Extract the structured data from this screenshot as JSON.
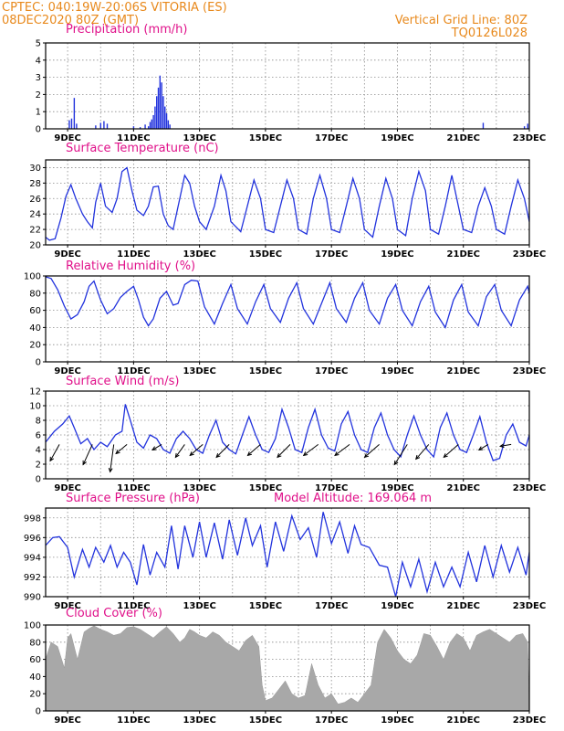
{
  "header": {
    "left_line1": "CPTEC:    040:19W-20:06S  VITORIA (ES)",
    "left_line2": "08DEC2020 80Z (GMT)",
    "right_line1": "Vertical Grid Line: 80Z",
    "right_line2": "TQ0126L028"
  },
  "colors": {
    "line": "#2233dd",
    "cloud": "#a8a8a8",
    "title": "#e0118a",
    "header": "#e8891c"
  },
  "x_axis": {
    "start_day": 8,
    "start_hour": 8,
    "end_day": 23,
    "end_hour": 0,
    "tick_days": [
      9,
      11,
      13,
      15,
      17,
      19,
      21,
      23
    ],
    "tick_labels": [
      "9DEC",
      "11DEC",
      "13DEC",
      "15DEC",
      "17DEC",
      "19DEC",
      "21DEC",
      "23DEC"
    ],
    "grid_days": [
      9,
      10,
      11,
      12,
      13,
      14,
      15,
      16,
      17,
      18,
      19,
      20,
      21,
      22,
      23
    ]
  },
  "model_altitude": "Model Altitude: 169.064 m",
  "chart_data": [
    {
      "id": "precip",
      "type": "bar",
      "title": "Precipitation (mm/h)",
      "ylim": [
        0,
        5
      ],
      "yticks": [
        0,
        1,
        2,
        3,
        4,
        5
      ],
      "points": [
        [
          9.05,
          0.5
        ],
        [
          9.12,
          0.6
        ],
        [
          9.2,
          1.8
        ],
        [
          9.27,
          0.3
        ],
        [
          9.85,
          0.2
        ],
        [
          10.0,
          0.35
        ],
        [
          10.1,
          0.45
        ],
        [
          10.2,
          0.3
        ],
        [
          11.0,
          0.15
        ],
        [
          11.2,
          0.1
        ],
        [
          11.35,
          0.25
        ],
        [
          11.45,
          0.15
        ],
        [
          11.5,
          0.4
        ],
        [
          11.55,
          0.55
        ],
        [
          11.6,
          0.8
        ],
        [
          11.65,
          1.3
        ],
        [
          11.7,
          1.9
        ],
        [
          11.75,
          2.4
        ],
        [
          11.8,
          3.1
        ],
        [
          11.85,
          2.7
        ],
        [
          11.9,
          1.9
        ],
        [
          11.95,
          1.3
        ],
        [
          12.0,
          0.9
        ],
        [
          12.05,
          0.5
        ],
        [
          12.1,
          0.25
        ],
        [
          21.6,
          0.35
        ],
        [
          22.85,
          0.15
        ],
        [
          22.95,
          0.3
        ]
      ]
    },
    {
      "id": "temp",
      "type": "line",
      "title": "Surface Temperature (nC)",
      "ylim": [
        20,
        31
      ],
      "yticks": [
        20,
        22,
        24,
        26,
        28,
        30
      ],
      "x": [
        8.33,
        8.45,
        8.62,
        8.8,
        8.95,
        9.1,
        9.25,
        9.45,
        9.6,
        9.75,
        9.85,
        10.0,
        10.15,
        10.35,
        10.5,
        10.65,
        10.8,
        10.95,
        11.1,
        11.3,
        11.45,
        11.6,
        11.75,
        11.9,
        12.05,
        12.2,
        12.4,
        12.55,
        12.7,
        12.85,
        13.0,
        13.2,
        13.45,
        13.65,
        13.8,
        13.95,
        14.25,
        14.45,
        14.65,
        14.85,
        15.0,
        15.25,
        15.45,
        15.65,
        15.85,
        16.0,
        16.25,
        16.45,
        16.65,
        16.85,
        17.0,
        17.25,
        17.45,
        17.65,
        17.85,
        18.0,
        18.25,
        18.45,
        18.65,
        18.85,
        19.0,
        19.25,
        19.45,
        19.65,
        19.85,
        20.0,
        20.25,
        20.45,
        20.65,
        20.85,
        21.0,
        21.25,
        21.45,
        21.65,
        21.85,
        22.0,
        22.25,
        22.45,
        22.65,
        22.85,
        23.0
      ],
      "y": [
        21.0,
        20.6,
        20.8,
        23.5,
        26.3,
        27.8,
        26.0,
        24.0,
        23.0,
        22.2,
        25.5,
        28.0,
        25.0,
        24.2,
        26.0,
        29.5,
        30.0,
        27.0,
        24.5,
        23.8,
        25.0,
        27.5,
        27.6,
        24.0,
        22.5,
        22.0,
        26.0,
        29.0,
        28.0,
        25.0,
        23.0,
        22.0,
        25.0,
        29.0,
        27.0,
        23.0,
        21.7,
        25.0,
        28.4,
        26.0,
        22.0,
        21.6,
        25.0,
        28.4,
        26.0,
        22.0,
        21.4,
        26.0,
        29.0,
        26.0,
        22.0,
        21.6,
        25.0,
        28.6,
        26.0,
        22.0,
        21.0,
        25.0,
        28.6,
        26.0,
        22.0,
        21.2,
        26.0,
        29.5,
        27.0,
        22.0,
        21.4,
        25.0,
        29.0,
        25.0,
        22.0,
        21.6,
        25.0,
        27.4,
        25.0,
        22.0,
        21.4,
        25.0,
        28.4,
        26.0,
        23.0
      ]
    },
    {
      "id": "rh",
      "type": "line",
      "title": "Relative Humidity (%)",
      "ylim": [
        0,
        100
      ],
      "yticks": [
        0,
        20,
        40,
        60,
        80,
        100
      ],
      "x": [
        8.33,
        8.5,
        8.7,
        8.9,
        9.1,
        9.3,
        9.5,
        9.65,
        9.8,
        10.0,
        10.2,
        10.4,
        10.6,
        10.8,
        11.0,
        11.15,
        11.3,
        11.45,
        11.6,
        11.8,
        12.0,
        12.2,
        12.35,
        12.55,
        12.75,
        12.95,
        13.15,
        13.45,
        13.7,
        13.95,
        14.15,
        14.45,
        14.7,
        14.95,
        15.15,
        15.45,
        15.7,
        15.95,
        16.15,
        16.45,
        16.7,
        16.95,
        17.15,
        17.45,
        17.7,
        17.95,
        18.15,
        18.45,
        18.7,
        18.95,
        19.15,
        19.45,
        19.7,
        19.95,
        20.15,
        20.45,
        20.7,
        20.95,
        21.15,
        21.45,
        21.7,
        21.95,
        22.15,
        22.45,
        22.7,
        22.95,
        23.0
      ],
      "y": [
        99,
        97,
        84,
        65,
        50,
        55,
        70,
        88,
        94,
        72,
        56,
        62,
        75,
        82,
        88,
        72,
        52,
        42,
        50,
        74,
        82,
        66,
        68,
        90,
        95,
        94,
        64,
        44,
        68,
        90,
        62,
        44,
        70,
        90,
        62,
        46,
        74,
        92,
        62,
        44,
        68,
        92,
        62,
        46,
        74,
        92,
        60,
        44,
        74,
        90,
        60,
        42,
        70,
        88,
        58,
        40,
        72,
        90,
        58,
        42,
        76,
        90,
        60,
        42,
        72,
        88,
        80
      ]
    },
    {
      "id": "wind",
      "type": "line",
      "title": "Surface Wind (m/s)",
      "ylim": [
        0,
        12
      ],
      "yticks": [
        0,
        2,
        4,
        6,
        8,
        10,
        12
      ],
      "x": [
        8.33,
        8.6,
        8.85,
        9.05,
        9.2,
        9.4,
        9.6,
        9.8,
        10.0,
        10.2,
        10.45,
        10.65,
        10.75,
        10.9,
        11.1,
        11.3,
        11.5,
        11.7,
        11.9,
        12.1,
        12.3,
        12.5,
        12.7,
        12.9,
        13.1,
        13.3,
        13.5,
        13.7,
        13.9,
        14.1,
        14.3,
        14.5,
        14.7,
        14.9,
        15.1,
        15.3,
        15.5,
        15.7,
        15.9,
        16.1,
        16.3,
        16.5,
        16.7,
        16.9,
        17.1,
        17.3,
        17.5,
        17.7,
        17.9,
        18.1,
        18.3,
        18.5,
        18.7,
        18.9,
        19.1,
        19.3,
        19.5,
        19.7,
        19.9,
        20.1,
        20.3,
        20.5,
        20.7,
        20.9,
        21.1,
        21.3,
        21.5,
        21.7,
        21.9,
        22.1,
        22.3,
        22.5,
        22.7,
        22.9,
        23.0
      ],
      "y": [
        5.0,
        6.5,
        7.5,
        8.6,
        7.0,
        4.8,
        5.5,
        4.0,
        5.0,
        4.4,
        6.0,
        6.5,
        10.2,
        8.0,
        5.0,
        4.2,
        6.0,
        5.5,
        4.0,
        3.5,
        5.5,
        6.5,
        5.5,
        4.0,
        3.5,
        6.0,
        8.0,
        5.0,
        4.0,
        3.4,
        6.0,
        8.5,
        6.0,
        4.0,
        3.6,
        5.5,
        9.5,
        7.0,
        4.0,
        3.6,
        7.0,
        9.5,
        6.0,
        4.2,
        3.8,
        7.5,
        9.2,
        6.0,
        4.0,
        3.6,
        7.0,
        9.0,
        6.0,
        4.0,
        3.0,
        6.0,
        8.6,
        6.0,
        4.0,
        3.0,
        7.0,
        9.0,
        6.0,
        4.0,
        3.6,
        6.0,
        8.5,
        5.0,
        2.5,
        2.8,
        6.0,
        7.5,
        5.0,
        4.5,
        6.0
      ],
      "arrows": [
        {
          "x": 8.75,
          "dx": -10,
          "dy": 18
        },
        {
          "x": 9.75,
          "dx": -10,
          "dy": 22
        },
        {
          "x": 10.4,
          "dx": -4,
          "dy": 30
        },
        {
          "x": 10.8,
          "dx": -12,
          "dy": 10
        },
        {
          "x": 11.85,
          "dx": -10,
          "dy": 6
        },
        {
          "x": 12.55,
          "dx": -10,
          "dy": 14
        },
        {
          "x": 13.1,
          "dx": -14,
          "dy": 12
        },
        {
          "x": 13.9,
          "dx": -14,
          "dy": 14
        },
        {
          "x": 14.85,
          "dx": -14,
          "dy": 12
        },
        {
          "x": 15.75,
          "dx": -14,
          "dy": 14
        },
        {
          "x": 16.6,
          "dx": -16,
          "dy": 12
        },
        {
          "x": 17.55,
          "dx": -16,
          "dy": 12
        },
        {
          "x": 18.45,
          "dx": -16,
          "dy": 14
        },
        {
          "x": 19.3,
          "dx": -14,
          "dy": 22
        },
        {
          "x": 19.95,
          "dx": -14,
          "dy": 16
        },
        {
          "x": 20.85,
          "dx": -16,
          "dy": 14
        },
        {
          "x": 21.75,
          "dx": -10,
          "dy": 6
        },
        {
          "x": 22.45,
          "dx": -12,
          "dy": 2
        }
      ]
    },
    {
      "id": "press",
      "type": "line",
      "title": "Surface Pressure (hPa)",
      "ylim": [
        990,
        999
      ],
      "yticks": [
        990,
        992,
        994,
        996,
        998
      ],
      "x": [
        8.33,
        8.55,
        8.75,
        9.0,
        9.2,
        9.45,
        9.65,
        9.85,
        10.1,
        10.3,
        10.5,
        10.7,
        10.9,
        11.1,
        11.3,
        11.5,
        11.7,
        11.95,
        12.15,
        12.35,
        12.55,
        12.8,
        13.0,
        13.2,
        13.45,
        13.7,
        13.9,
        14.15,
        14.4,
        14.6,
        14.85,
        15.05,
        15.3,
        15.55,
        15.8,
        16.05,
        16.3,
        16.55,
        16.75,
        17.0,
        17.25,
        17.5,
        17.7,
        17.9,
        18.15,
        18.45,
        18.7,
        18.95,
        19.15,
        19.4,
        19.65,
        19.9,
        20.15,
        20.4,
        20.65,
        20.9,
        21.15,
        21.4,
        21.65,
        21.9,
        22.15,
        22.4,
        22.65,
        22.9,
        23.0
      ],
      "y": [
        995.2,
        996.0,
        996.1,
        995.0,
        992.0,
        994.8,
        993.0,
        995.0,
        993.5,
        995.2,
        993.0,
        994.5,
        993.5,
        991.2,
        995.3,
        992.2,
        994.5,
        993.0,
        997.2,
        992.8,
        997.2,
        994.0,
        997.6,
        994.0,
        997.5,
        993.8,
        997.8,
        994.2,
        998.0,
        995.2,
        997.2,
        993.0,
        997.6,
        994.6,
        998.2,
        995.8,
        997.0,
        994.0,
        998.6,
        995.4,
        997.6,
        994.4,
        997.2,
        995.3,
        995.0,
        993.2,
        993.0,
        990.0,
        993.5,
        991.0,
        993.8,
        990.5,
        993.5,
        991.0,
        993.0,
        991.0,
        994.5,
        991.5,
        995.2,
        992.0,
        995.2,
        992.5,
        995.0,
        992.2,
        994.5
      ]
    },
    {
      "id": "cloud",
      "type": "area",
      "title": "Cloud Cover (%)",
      "ylim": [
        0,
        100
      ],
      "yticks": [
        0,
        20,
        40,
        60,
        80,
        100
      ],
      "x": [
        8.33,
        8.5,
        8.7,
        8.9,
        9.0,
        9.1,
        9.3,
        9.5,
        9.65,
        9.8,
        10.0,
        10.2,
        10.4,
        10.6,
        10.8,
        11.0,
        11.2,
        11.4,
        11.6,
        11.8,
        12.0,
        12.2,
        12.4,
        12.55,
        12.7,
        12.85,
        13.0,
        13.2,
        13.4,
        13.6,
        13.8,
        14.0,
        14.2,
        14.4,
        14.6,
        14.8,
        14.9,
        15.0,
        15.2,
        15.4,
        15.6,
        15.8,
        16.0,
        16.2,
        16.4,
        16.6,
        16.8,
        17.0,
        17.2,
        17.4,
        17.6,
        17.8,
        18.0,
        18.2,
        18.4,
        18.6,
        18.8,
        19.0,
        19.2,
        19.4,
        19.6,
        19.8,
        20.0,
        20.2,
        20.4,
        20.6,
        20.8,
        21.0,
        21.2,
        21.4,
        21.6,
        21.8,
        22.0,
        22.2,
        22.4,
        22.6,
        22.8,
        22.95,
        23.0
      ],
      "y": [
        60,
        80,
        75,
        50,
        85,
        90,
        60,
        92,
        96,
        99,
        95,
        92,
        88,
        90,
        97,
        98,
        95,
        90,
        85,
        92,
        98,
        90,
        80,
        85,
        95,
        92,
        88,
        85,
        92,
        88,
        80,
        75,
        70,
        82,
        88,
        75,
        30,
        12,
        15,
        25,
        35,
        20,
        15,
        18,
        55,
        30,
        15,
        20,
        8,
        10,
        15,
        10,
        20,
        30,
        80,
        95,
        85,
        70,
        60,
        55,
        65,
        90,
        88,
        75,
        60,
        80,
        90,
        85,
        70,
        88,
        92,
        95,
        90,
        85,
        80,
        88,
        90,
        80,
        5
      ]
    }
  ]
}
